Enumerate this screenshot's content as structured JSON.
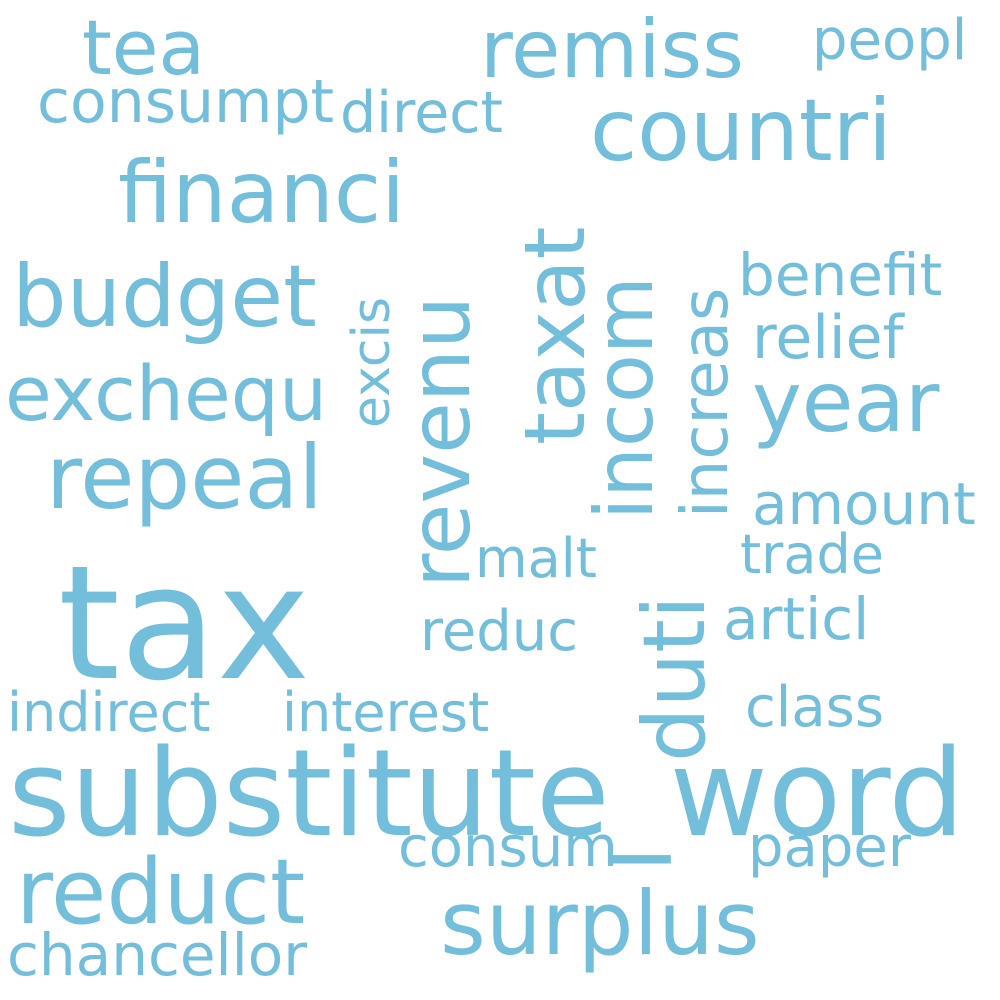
{
  "word_color": "#73BEDA",
  "background_color": "#FFFFFF",
  "words": {
    "tax": "tax",
    "substitute_word": "substitute_word",
    "financi": "financi",
    "countri": "countri",
    "remiss": "remiss",
    "tea": "tea",
    "peopl": "peopl",
    "consumpt": "consumpt",
    "direct": "direct",
    "budget": "budget",
    "exchequ": "exchequ",
    "repeal": "repeal",
    "year": "year",
    "benefit": "benefit",
    "relief": "relief",
    "amount": "amount",
    "trade": "trade",
    "malt": "malt",
    "articl": "articl",
    "reduc": "reduc",
    "class": "class",
    "indirect": "indirect",
    "interest": "interest",
    "consum": "consum",
    "paper": "paper",
    "reduct": "reduct",
    "surplus": "surplus",
    "chancellor": "chancellor",
    "taxat": "taxat",
    "revenu": "revenu",
    "incom": "incom",
    "increas": "increas",
    "duti": "duti",
    "excis": "excis"
  }
}
